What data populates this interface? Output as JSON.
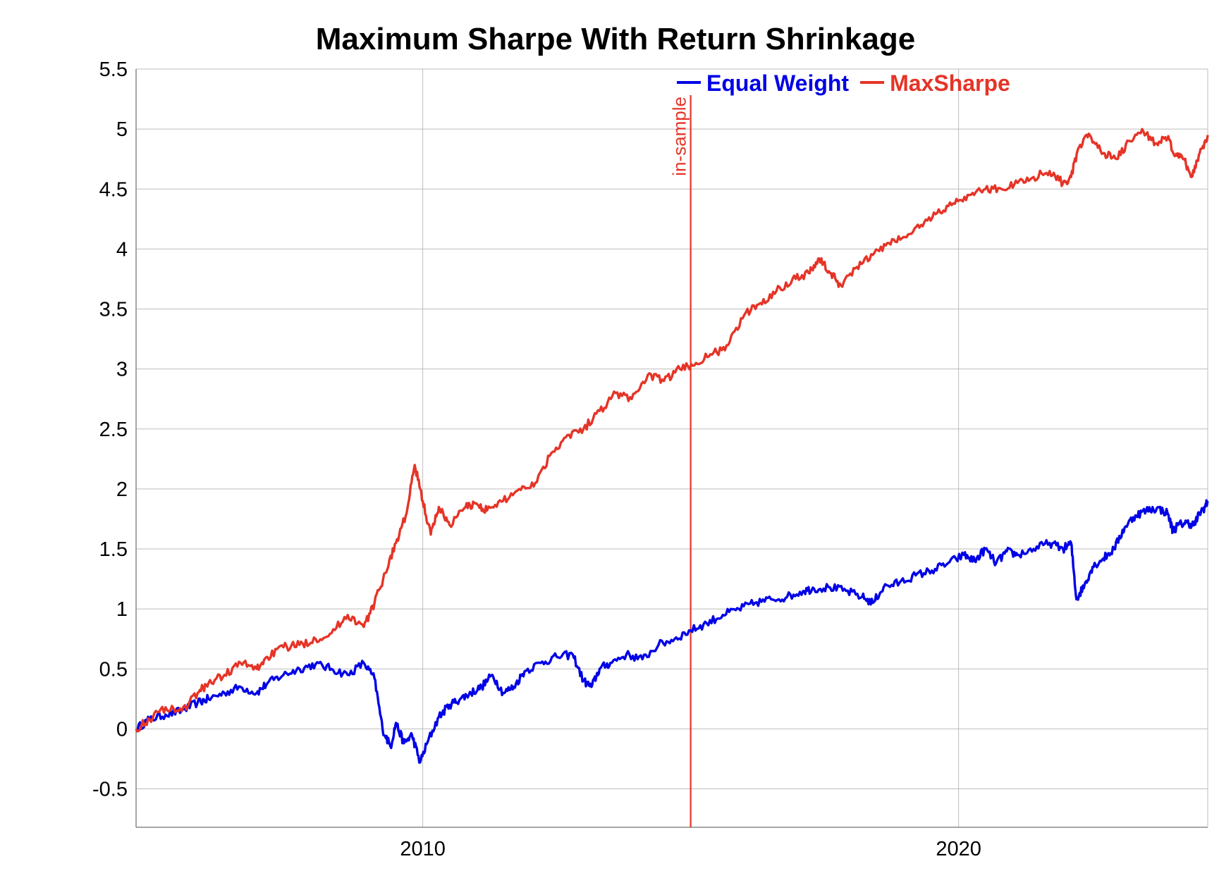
{
  "chart_data": {
    "type": "line",
    "title": "Maximum Sharpe With Return Shrinkage",
    "xlabel": "",
    "ylabel": "",
    "xlim": [
      2004.65,
      2024.65
    ],
    "ylim": [
      -0.82,
      5.5
    ],
    "x_ticks": [
      {
        "value": 2010,
        "label": "2010"
      },
      {
        "value": 2020,
        "label": "2020"
      }
    ],
    "y_ticks": [
      {
        "value": -0.5,
        "label": "-0.5"
      },
      {
        "value": 0,
        "label": "0"
      },
      {
        "value": 0.5,
        "label": "0.5"
      },
      {
        "value": 1,
        "label": "1"
      },
      {
        "value": 1.5,
        "label": "1.5"
      },
      {
        "value": 2,
        "label": "2"
      },
      {
        "value": 2.5,
        "label": "2.5"
      },
      {
        "value": 3,
        "label": "3"
      },
      {
        "value": 3.5,
        "label": "3.5"
      },
      {
        "value": 4,
        "label": "4"
      },
      {
        "value": 4.5,
        "label": "4.5"
      },
      {
        "value": 5,
        "label": "5"
      },
      {
        "value": 5.5,
        "label": "5.5"
      }
    ],
    "grid": true,
    "legend": "top-right",
    "annotations": [
      {
        "type": "vline",
        "x": 2015.0,
        "label": "in-sample",
        "color": "#e53427"
      }
    ],
    "series": [
      {
        "name": "Equal Weight",
        "color": "#0000e6",
        "points": [
          [
            2004.65,
            0.0
          ],
          [
            2004.9,
            0.08
          ],
          [
            2005.2,
            0.12
          ],
          [
            2005.5,
            0.15
          ],
          [
            2005.8,
            0.22
          ],
          [
            2006.0,
            0.25
          ],
          [
            2006.3,
            0.3
          ],
          [
            2006.6,
            0.35
          ],
          [
            2006.9,
            0.3
          ],
          [
            2007.1,
            0.38
          ],
          [
            2007.4,
            0.45
          ],
          [
            2007.7,
            0.5
          ],
          [
            2008.0,
            0.54
          ],
          [
            2008.3,
            0.5
          ],
          [
            2008.6,
            0.45
          ],
          [
            2008.9,
            0.55
          ],
          [
            2009.1,
            0.42
          ],
          [
            2009.25,
            0.0
          ],
          [
            2009.4,
            -0.15
          ],
          [
            2009.5,
            0.05
          ],
          [
            2009.65,
            -0.12
          ],
          [
            2009.8,
            -0.05
          ],
          [
            2009.95,
            -0.28
          ],
          [
            2010.1,
            -0.1
          ],
          [
            2010.3,
            0.1
          ],
          [
            2010.5,
            0.2
          ],
          [
            2010.7,
            0.25
          ],
          [
            2010.9,
            0.3
          ],
          [
            2011.1,
            0.35
          ],
          [
            2011.3,
            0.45
          ],
          [
            2011.5,
            0.3
          ],
          [
            2011.7,
            0.35
          ],
          [
            2011.9,
            0.48
          ],
          [
            2012.2,
            0.55
          ],
          [
            2012.5,
            0.6
          ],
          [
            2012.8,
            0.62
          ],
          [
            2013.0,
            0.4
          ],
          [
            2013.15,
            0.35
          ],
          [
            2013.3,
            0.5
          ],
          [
            2013.5,
            0.55
          ],
          [
            2013.8,
            0.62
          ],
          [
            2014.1,
            0.58
          ],
          [
            2014.4,
            0.7
          ],
          [
            2014.7,
            0.75
          ],
          [
            2015.0,
            0.82
          ],
          [
            2015.3,
            0.88
          ],
          [
            2015.6,
            0.95
          ],
          [
            2015.9,
            1.0
          ],
          [
            2016.2,
            1.05
          ],
          [
            2016.5,
            1.08
          ],
          [
            2016.8,
            1.1
          ],
          [
            2017.1,
            1.15
          ],
          [
            2017.3,
            1.17
          ],
          [
            2017.6,
            1.18
          ],
          [
            2017.9,
            1.15
          ],
          [
            2018.2,
            1.1
          ],
          [
            2018.4,
            1.05
          ],
          [
            2018.6,
            1.18
          ],
          [
            2018.9,
            1.22
          ],
          [
            2019.2,
            1.28
          ],
          [
            2019.5,
            1.32
          ],
          [
            2019.8,
            1.38
          ],
          [
            2020.1,
            1.45
          ],
          [
            2020.3,
            1.4
          ],
          [
            2020.5,
            1.5
          ],
          [
            2020.7,
            1.38
          ],
          [
            2020.9,
            1.48
          ],
          [
            2021.1,
            1.45
          ],
          [
            2021.4,
            1.5
          ],
          [
            2021.7,
            1.55
          ],
          [
            2021.95,
            1.5
          ],
          [
            2022.1,
            1.55
          ],
          [
            2022.2,
            1.08
          ],
          [
            2022.35,
            1.2
          ],
          [
            2022.5,
            1.35
          ],
          [
            2022.7,
            1.42
          ],
          [
            2022.9,
            1.5
          ],
          [
            2023.1,
            1.68
          ],
          [
            2023.3,
            1.78
          ],
          [
            2023.5,
            1.82
          ],
          [
            2023.7,
            1.84
          ],
          [
            2023.9,
            1.8
          ],
          [
            2024.0,
            1.65
          ],
          [
            2024.1,
            1.7
          ],
          [
            2024.25,
            1.72
          ],
          [
            2024.4,
            1.7
          ],
          [
            2024.5,
            1.8
          ],
          [
            2024.6,
            1.85
          ],
          [
            2024.65,
            1.9
          ]
        ]
      },
      {
        "name": "MaxSharpe",
        "color": "#e53427",
        "points": [
          [
            2004.65,
            0.0
          ],
          [
            2004.9,
            0.08
          ],
          [
            2005.2,
            0.18
          ],
          [
            2005.5,
            0.15
          ],
          [
            2005.8,
            0.3
          ],
          [
            2006.0,
            0.38
          ],
          [
            2006.3,
            0.45
          ],
          [
            2006.6,
            0.55
          ],
          [
            2006.9,
            0.5
          ],
          [
            2007.1,
            0.6
          ],
          [
            2007.4,
            0.68
          ],
          [
            2007.7,
            0.7
          ],
          [
            2008.0,
            0.75
          ],
          [
            2008.3,
            0.8
          ],
          [
            2008.6,
            0.95
          ],
          [
            2008.9,
            0.85
          ],
          [
            2009.1,
            1.05
          ],
          [
            2009.3,
            1.3
          ],
          [
            2009.5,
            1.55
          ],
          [
            2009.7,
            1.8
          ],
          [
            2009.85,
            2.2
          ],
          [
            2010.0,
            1.9
          ],
          [
            2010.15,
            1.62
          ],
          [
            2010.3,
            1.85
          ],
          [
            2010.5,
            1.7
          ],
          [
            2010.8,
            1.85
          ],
          [
            2011.0,
            1.88
          ],
          [
            2011.2,
            1.82
          ],
          [
            2011.5,
            1.9
          ],
          [
            2011.8,
            2.0
          ],
          [
            2012.1,
            2.05
          ],
          [
            2012.4,
            2.3
          ],
          [
            2012.7,
            2.45
          ],
          [
            2013.0,
            2.5
          ],
          [
            2013.3,
            2.65
          ],
          [
            2013.6,
            2.8
          ],
          [
            2013.9,
            2.75
          ],
          [
            2014.2,
            2.95
          ],
          [
            2014.5,
            2.9
          ],
          [
            2014.8,
            3.0
          ],
          [
            2015.1,
            3.05
          ],
          [
            2015.4,
            3.12
          ],
          [
            2015.7,
            3.2
          ],
          [
            2016.0,
            3.45
          ],
          [
            2016.3,
            3.55
          ],
          [
            2016.6,
            3.65
          ],
          [
            2016.9,
            3.75
          ],
          [
            2017.2,
            3.8
          ],
          [
            2017.4,
            3.92
          ],
          [
            2017.6,
            3.8
          ],
          [
            2017.8,
            3.7
          ],
          [
            2018.1,
            3.85
          ],
          [
            2018.4,
            3.95
          ],
          [
            2018.7,
            4.05
          ],
          [
            2019.0,
            4.1
          ],
          [
            2019.3,
            4.2
          ],
          [
            2019.6,
            4.3
          ],
          [
            2019.9,
            4.38
          ],
          [
            2020.2,
            4.45
          ],
          [
            2020.5,
            4.5
          ],
          [
            2020.8,
            4.5
          ],
          [
            2021.1,
            4.55
          ],
          [
            2021.4,
            4.6
          ],
          [
            2021.7,
            4.65
          ],
          [
            2021.95,
            4.55
          ],
          [
            2022.1,
            4.6
          ],
          [
            2022.25,
            4.85
          ],
          [
            2022.45,
            4.95
          ],
          [
            2022.7,
            4.8
          ],
          [
            2022.95,
            4.75
          ],
          [
            2023.2,
            4.9
          ],
          [
            2023.45,
            4.98
          ],
          [
            2023.7,
            4.88
          ],
          [
            2023.9,
            4.92
          ],
          [
            2024.05,
            4.78
          ],
          [
            2024.2,
            4.75
          ],
          [
            2024.35,
            4.6
          ],
          [
            2024.5,
            4.8
          ],
          [
            2024.65,
            4.95
          ]
        ]
      }
    ]
  }
}
